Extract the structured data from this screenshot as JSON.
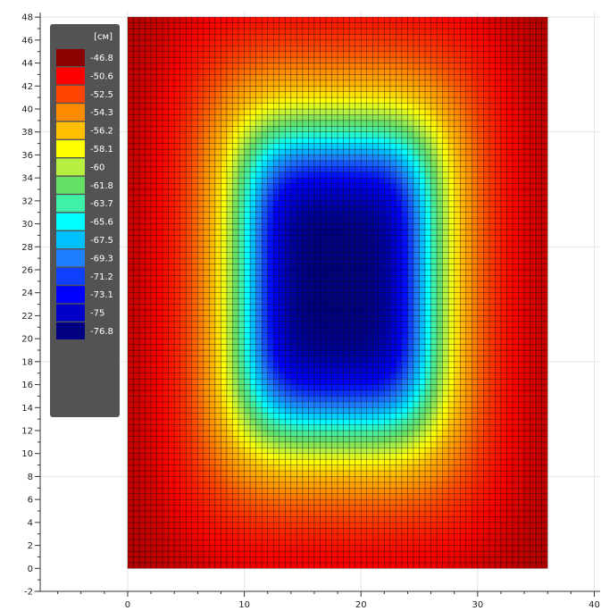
{
  "chart_data": {
    "type": "heatmap",
    "title": "",
    "xlabel": "",
    "ylabel": "",
    "unit": "[см]",
    "xlim": [
      -7.5,
      40.5
    ],
    "ylim": [
      -2,
      48.4
    ],
    "x_ticks": [
      0,
      10,
      20,
      30,
      40
    ],
    "y_ticks": [
      -2,
      0,
      2,
      4,
      6,
      8,
      10,
      12,
      14,
      16,
      18,
      20,
      22,
      24,
      26,
      28,
      30,
      32,
      34,
      36,
      38,
      40,
      42,
      44,
      46,
      48
    ],
    "grid": true,
    "legend_position": "top-left",
    "field_extent": {
      "x": [
        0,
        36
      ],
      "y": [
        0,
        48
      ]
    },
    "field_center": {
      "x": 18,
      "y": 25
    },
    "field_min": -76.8,
    "field_max": -46.8,
    "mesh_step": 0.5,
    "legend": [
      {
        "label": "-46.8",
        "color": "#8b0000"
      },
      {
        "label": "-50.6",
        "color": "#ff0000"
      },
      {
        "label": "-52.5",
        "color": "#ff4500"
      },
      {
        "label": "-54.3",
        "color": "#ff8c00"
      },
      {
        "label": "-56.2",
        "color": "#ffbf00"
      },
      {
        "label": "-58.1",
        "color": "#ffff00"
      },
      {
        "label": "-60",
        "color": "#b8f040"
      },
      {
        "label": "-61.8",
        "color": "#66e066"
      },
      {
        "label": "-63.7",
        "color": "#3ff0a8"
      },
      {
        "label": "-65.6",
        "color": "#00ffff"
      },
      {
        "label": "-67.5",
        "color": "#00bfff"
      },
      {
        "label": "-69.3",
        "color": "#1e7fff"
      },
      {
        "label": "-71.2",
        "color": "#1040ff"
      },
      {
        "label": "-73.1",
        "color": "#0000ff"
      },
      {
        "label": "-75",
        "color": "#0000c8"
      },
      {
        "label": "-76.8",
        "color": "#000080"
      }
    ]
  }
}
